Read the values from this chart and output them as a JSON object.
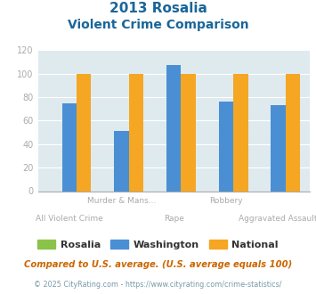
{
  "title_line1": "2013 Rosalia",
  "title_line2": "Violent Crime Comparison",
  "categories": [
    "All Violent Crime",
    "Murder & Mans...",
    "Rape",
    "Robbery",
    "Aggravated Assault"
  ],
  "top_labels": [
    "",
    "Murder & Mans...",
    "",
    "Robbery",
    ""
  ],
  "bottom_labels": [
    "All Violent Crime",
    "",
    "Rape",
    "",
    "Aggravated Assault"
  ],
  "rosalia_values": [
    0,
    0,
    0,
    0,
    0
  ],
  "washington_values": [
    75,
    51,
    107,
    76,
    73
  ],
  "national_values": [
    100,
    100,
    100,
    100,
    100
  ],
  "rosalia_color": "#8bc34a",
  "washington_color": "#4a8fd4",
  "national_color": "#f5a623",
  "ylim": [
    0,
    120
  ],
  "yticks": [
    0,
    20,
    40,
    60,
    80,
    100,
    120
  ],
  "legend_labels": [
    "Rosalia",
    "Washington",
    "National"
  ],
  "footnote1": "Compared to U.S. average. (U.S. average equals 100)",
  "footnote2": "© 2025 CityRating.com - https://www.cityrating.com/crime-statistics/",
  "bg_color": "#deeaee",
  "title_color": "#1a6699",
  "footnote1_color": "#cc6600",
  "footnote2_color": "#7799aa",
  "xlabel_color": "#aaaaaa",
  "ytick_color": "#aaaaaa"
}
